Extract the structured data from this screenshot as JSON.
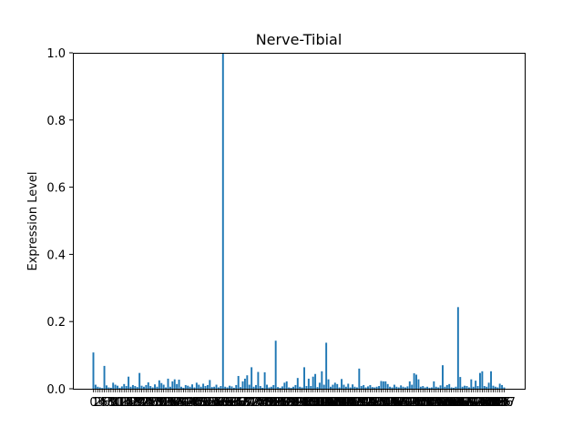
{
  "chart_data": {
    "type": "bar",
    "title": "Nerve-Tibial",
    "xlabel": "",
    "ylabel": "Expression Level",
    "ylim": [
      0,
      1.0
    ],
    "yticks": [
      "0.0",
      "0.2",
      "0.4",
      "0.6",
      "0.8",
      "1.0"
    ],
    "grid": false,
    "bar_color": "#1f77b4",
    "values": [
      0.108,
      0.012,
      0.006,
      0.004,
      0.002,
      0.068,
      0.01,
      0.004,
      0.003,
      0.018,
      0.012,
      0.009,
      0.003,
      0.007,
      0.014,
      0.008,
      0.036,
      0.006,
      0.011,
      0.008,
      0.005,
      0.047,
      0.009,
      0.006,
      0.011,
      0.019,
      0.008,
      0.004,
      0.013,
      0.006,
      0.025,
      0.017,
      0.012,
      0.004,
      0.03,
      0.006,
      0.022,
      0.028,
      0.014,
      0.027,
      0.006,
      0.003,
      0.011,
      0.009,
      0.006,
      0.013,
      0.004,
      0.018,
      0.012,
      0.006,
      0.015,
      0.008,
      0.011,
      0.026,
      0.005,
      0.006,
      0.012,
      0.004,
      0.008,
      1.0,
      0.006,
      0.004,
      0.009,
      0.007,
      0.003,
      0.011,
      0.038,
      0.005,
      0.022,
      0.03,
      0.04,
      0.012,
      0.064,
      0.006,
      0.011,
      0.05,
      0.008,
      0.003,
      0.049,
      0.012,
      0.004,
      0.006,
      0.011,
      0.143,
      0.005,
      0.003,
      0.007,
      0.018,
      0.022,
      0.004,
      0.003,
      0.006,
      0.011,
      0.032,
      0.006,
      0.004,
      0.064,
      0.008,
      0.03,
      0.008,
      0.036,
      0.044,
      0.005,
      0.018,
      0.052,
      0.012,
      0.137,
      0.028,
      0.006,
      0.012,
      0.018,
      0.014,
      0.004,
      0.029,
      0.012,
      0.006,
      0.015,
      0.004,
      0.013,
      0.006,
      0.004,
      0.06,
      0.008,
      0.011,
      0.004,
      0.007,
      0.011,
      0.005,
      0.004,
      0.006,
      0.008,
      0.023,
      0.022,
      0.022,
      0.014,
      0.006,
      0.004,
      0.012,
      0.006,
      0.004,
      0.01,
      0.006,
      0.004,
      0.007,
      0.022,
      0.012,
      0.046,
      0.042,
      0.028,
      0.006,
      0.008,
      0.004,
      0.006,
      0.003,
      0.004,
      0.022,
      0.006,
      0.004,
      0.01,
      0.07,
      0.006,
      0.011,
      0.014,
      0.004,
      0.003,
      0.006,
      0.243,
      0.035,
      0.006,
      0.009,
      0.008,
      0.004,
      0.028,
      0.006,
      0.024,
      0.008,
      0.047,
      0.052,
      0.008,
      0.006,
      0.018,
      0.052,
      0.009,
      0.006,
      0.004,
      0.015,
      0.011,
      0.004
    ]
  }
}
